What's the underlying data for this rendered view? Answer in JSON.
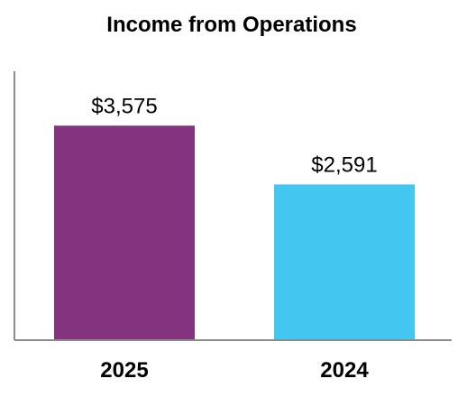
{
  "chart_data": {
    "type": "bar",
    "title": "Income from Operations",
    "categories": [
      "2025",
      "2024"
    ],
    "values": [
      3575,
      2591
    ],
    "value_labels": [
      "$3,575",
      "$2,591"
    ],
    "colors": [
      "#84347e",
      "#43c6f0"
    ],
    "ylim": [
      0,
      4500
    ],
    "grid": false,
    "legend": "none"
  }
}
